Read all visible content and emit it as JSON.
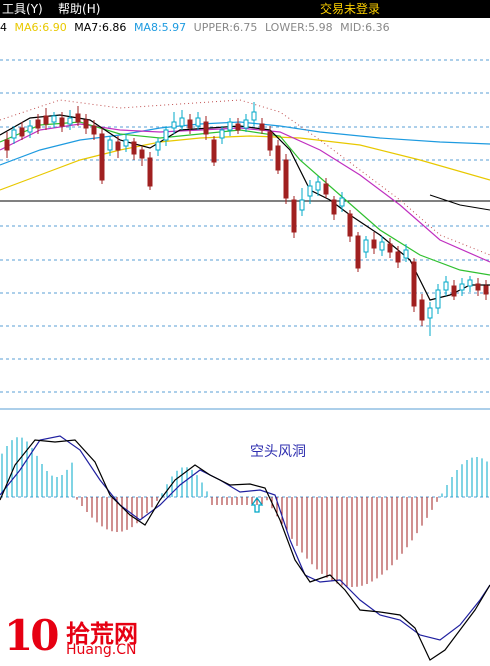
{
  "menu": {
    "tools": "工具",
    "tools_key": "(Y)",
    "help": "帮助",
    "help_key": "(H)",
    "login_status": "交易未登录"
  },
  "indicators": {
    "prefix": "4",
    "ma6": "MA6:6.90",
    "ma7": "MA7:6.86",
    "ma8": "MA8:5.97",
    "upper": "UPPER:6.75",
    "lower": "LOWER:5.98",
    "mid": "MID:6.36"
  },
  "colors": {
    "up": "#00a8c8",
    "down": "#a02020",
    "ma6": "#e8c800",
    "ma7": "#000000",
    "ma8": "#1e9be0",
    "boll": "#c05050",
    "grid": "#5a9fd4",
    "macd_dif": "#000000",
    "macd_dea": "#2020a0"
  },
  "annotation": "空头风洞",
  "logo": {
    "mark": "10",
    "cn": "拾荒网",
    "en": "Huang.CN"
  },
  "icons": [
    "up-arrow-icon"
  ]
}
